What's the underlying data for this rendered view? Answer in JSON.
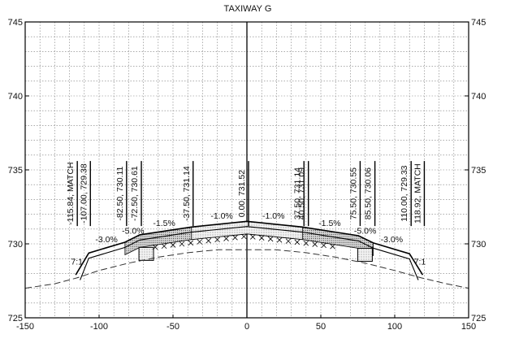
{
  "title": "TAXIWAY G",
  "chart_data": {
    "type": "cross-section",
    "title": "TAXIWAY G",
    "x_range": [
      -150,
      150
    ],
    "y_range": [
      725,
      745
    ],
    "x_ticks": [
      -150,
      -100,
      -50,
      0,
      50,
      100,
      150
    ],
    "x_tick_labels": [
      "-150",
      "-100",
      "-50",
      "0",
      "50",
      "100",
      "150"
    ],
    "y_ticks": [
      725,
      730,
      735,
      740,
      745
    ],
    "y_tick_labels_left": [
      "725",
      "730",
      "735",
      "740",
      "745"
    ],
    "y_tick_labels_right": [
      "725",
      "730",
      "735",
      "740",
      "745"
    ],
    "grid": true,
    "finished_surface": [
      [
        -115.84,
        727.9
      ],
      [
        -107.0,
        729.38
      ],
      [
        -82.5,
        730.11
      ],
      [
        -72.5,
        730.61
      ],
      [
        -37.5,
        731.14
      ],
      [
        0.0,
        731.52
      ],
      [
        37.5,
        731.14
      ],
      [
        75.5,
        730.55
      ],
      [
        85.5,
        730.06
      ],
      [
        110.0,
        729.33
      ],
      [
        118.92,
        727.9
      ]
    ],
    "existing_ground": [
      [
        -150,
        727.0
      ],
      [
        -130,
        727.3
      ],
      [
        -115,
        727.7
      ],
      [
        -100,
        728.2
      ],
      [
        -80,
        728.7
      ],
      [
        -60,
        729.1
      ],
      [
        -40,
        729.4
      ],
      [
        -20,
        729.6
      ],
      [
        0,
        729.6
      ],
      [
        20,
        729.6
      ],
      [
        40,
        729.4
      ],
      [
        60,
        729.1
      ],
      [
        80,
        728.7
      ],
      [
        100,
        728.2
      ],
      [
        118,
        727.7
      ],
      [
        135,
        727.3
      ],
      [
        150,
        727.0
      ]
    ],
    "station_callouts": [
      {
        "label": "-115.84, MATCH",
        "x": -115.84
      },
      {
        "label": "-107.00, 729.38",
        "x": -107.0
      },
      {
        "label": "-82.50, 730.11",
        "x": -82.5
      },
      {
        "label": "-72.50, 730.61",
        "x": -72.5
      },
      {
        "label": "-37.50, 731.14",
        "x": -37.5
      },
      {
        "label": "0.00, 731.52",
        "x": 0.0
      },
      {
        "label": "37.50, 731.14",
        "x": 37.5
      },
      {
        "label": "40.50, 731.09",
        "x": 40.5
      },
      {
        "label": "75.50, 730.55",
        "x": 75.5
      },
      {
        "label": "85.50, 730.06",
        "x": 85.5
      },
      {
        "label": "110.00, 729.33",
        "x": 110.0
      },
      {
        "label": "118.92, MATCH",
        "x": 118.92
      }
    ],
    "slope_labels": [
      {
        "text": "-1.0%",
        "x": -17,
        "y": 731.7
      },
      {
        "text": "-1.0%",
        "x": 18,
        "y": 731.7
      },
      {
        "text": "-1.5%",
        "x": -56,
        "y": 731.2
      },
      {
        "text": "-1.5%",
        "x": 56,
        "y": 731.2
      },
      {
        "text": "-5.0%",
        "x": -77,
        "y": 730.7
      },
      {
        "text": "-5.0%",
        "x": 80,
        "y": 730.7
      },
      {
        "text": "-3.0%",
        "x": -95,
        "y": 730.1
      },
      {
        "text": "-3.0%",
        "x": 98,
        "y": 730.1
      },
      {
        "text": "7:1",
        "x": -115,
        "y": 728.6
      },
      {
        "text": "7:1",
        "x": 117,
        "y": 728.6
      }
    ]
  }
}
